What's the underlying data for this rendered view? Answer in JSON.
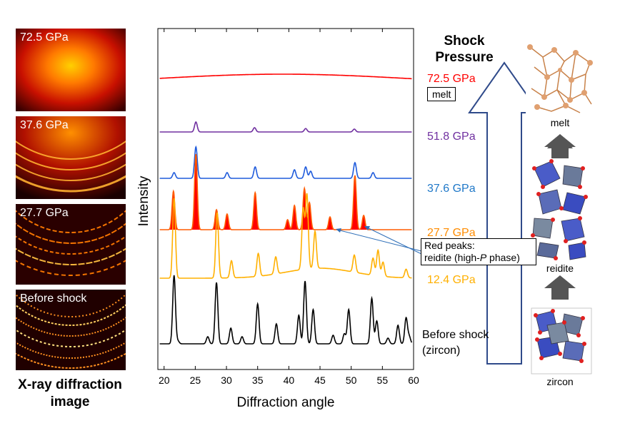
{
  "xrd_images": [
    {
      "label": "72.5 GPa"
    },
    {
      "label": "37.6 GPa"
    },
    {
      "label": "27.7 GPa"
    },
    {
      "label": "Before shock"
    }
  ],
  "left_caption": [
    "X-ray diffraction",
    "image"
  ],
  "chart_data": {
    "type": "line",
    "xlabel": "Diffraction angle",
    "ylabel": "Intensity",
    "xlim": [
      19,
      60
    ],
    "xticks": [
      20,
      25,
      30,
      35,
      40,
      45,
      50,
      55,
      60
    ],
    "series": [
      {
        "name": "72.5 GPa",
        "color": "#ff0000",
        "offset": 5,
        "peaks": []
      },
      {
        "name": "51.8 GPa",
        "color": "#7030a0",
        "offset": 4,
        "peaks": [
          [
            25.1,
            0.35
          ],
          [
            34.5,
            0.15
          ],
          [
            42.7,
            0.12
          ],
          [
            50.5,
            0.1
          ]
        ]
      },
      {
        "name": "37.6 GPa",
        "color": "#1f5bdc",
        "offset": 3,
        "peaks": [
          [
            21.6,
            0.2
          ],
          [
            25.1,
            1.1
          ],
          [
            30.1,
            0.2
          ],
          [
            34.6,
            0.4
          ],
          [
            40.9,
            0.3
          ],
          [
            42.7,
            0.4
          ],
          [
            43.5,
            0.25
          ],
          [
            50.6,
            0.55
          ],
          [
            53.5,
            0.2
          ]
        ]
      },
      {
        "name": "27.7 GPa",
        "color": "#ff5b00",
        "offset": 2,
        "fill": "#ff0000",
        "peaks": [
          [
            21.5,
            1.35
          ],
          [
            25.1,
            2.65
          ],
          [
            28.4,
            0.7
          ],
          [
            30.1,
            0.55
          ],
          [
            34.6,
            1.3
          ],
          [
            39.8,
            0.35
          ],
          [
            40.9,
            0.85
          ],
          [
            42.5,
            1.45
          ],
          [
            43.3,
            0.95
          ],
          [
            46.6,
            0.45
          ],
          [
            50.6,
            1.9
          ],
          [
            52.0,
            0.5
          ]
        ]
      },
      {
        "name": "12.4 GPa",
        "color": "#ffb000",
        "offset": 1,
        "peaks": [
          [
            21.6,
            2.8
          ],
          [
            28.5,
            2.3
          ],
          [
            30.8,
            0.6
          ],
          [
            35.1,
            0.8
          ],
          [
            37.9,
            0.6
          ],
          [
            42.3,
            2.1
          ],
          [
            42.9,
            2.6
          ],
          [
            44.2,
            1.3
          ],
          [
            50.5,
            0.6
          ],
          [
            53.5,
            0.6
          ],
          [
            54.3,
            0.9
          ],
          [
            55.1,
            0.5
          ],
          [
            58.8,
            0.3
          ]
        ]
      },
      {
        "name": "Before shock",
        "color": "#000000",
        "offset": 0,
        "peaks": [
          [
            21.6,
            2.4
          ],
          [
            22.2,
            0.1
          ],
          [
            27.0,
            0.25
          ],
          [
            28.4,
            2.15
          ],
          [
            30.7,
            0.55
          ],
          [
            32.5,
            0.25
          ],
          [
            35.0,
            1.4
          ],
          [
            38.0,
            0.7
          ],
          [
            41.6,
            1.0
          ],
          [
            42.6,
            2.2
          ],
          [
            43.9,
            1.2
          ],
          [
            47.1,
            0.3
          ],
          [
            48.9,
            0.35
          ],
          [
            49.6,
            1.2
          ],
          [
            53.3,
            1.6
          ],
          [
            54.1,
            0.8
          ],
          [
            55.9,
            0.2
          ],
          [
            57.5,
            0.65
          ],
          [
            58.8,
            0.9
          ],
          [
            59.3,
            0.25
          ]
        ]
      }
    ]
  },
  "pressure_labels": [
    {
      "text": "72.5 GPa",
      "color": "#ff0000"
    },
    {
      "text": "51.8 GPa",
      "color": "#7030a0"
    },
    {
      "text": "37.6 GPa",
      "color": "#1f78c8"
    },
    {
      "text": "27.7 GPa",
      "color": "#ff8c00"
    },
    {
      "text": "12.4 GPa",
      "color": "#ffb000"
    }
  ],
  "melt_box": "melt",
  "before_shock_label": [
    "Before shock",
    "(zircon)"
  ],
  "annotation": {
    "line1": "Red peaks:",
    "line2_pre": "reidite (high-",
    "line2_italic": "P",
    "line2_post": " phase)"
  },
  "shock_title": [
    "Shock",
    "Pressure"
  ],
  "structure_labels": {
    "melt": "melt",
    "reidite": "reidite",
    "zircon": "zircon"
  }
}
